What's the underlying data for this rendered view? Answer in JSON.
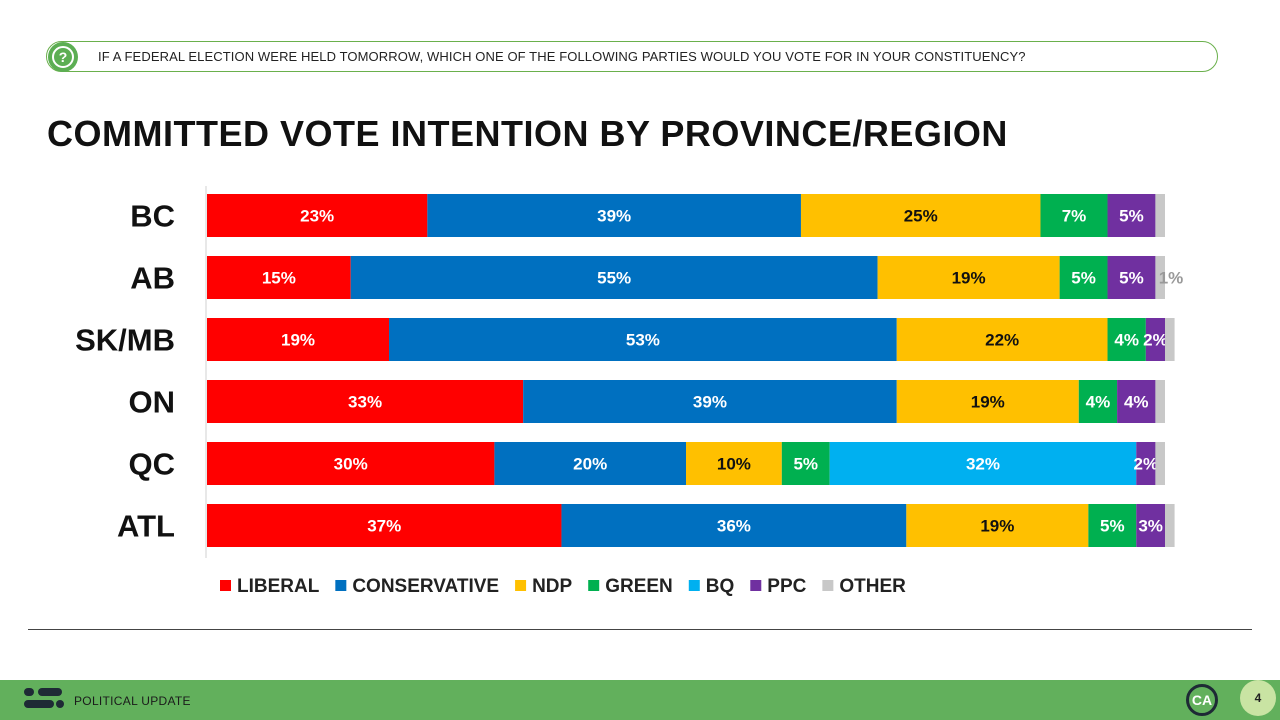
{
  "question": "IF A FEDERAL ELECTION WERE HELD TOMORROW, WHICH ONE OF THE FOLLOWING PARTIES WOULD YOU VOTE FOR IN YOUR CONSTITUENCY?",
  "title": "COMMITTED VOTE INTENTION BY PROVINCE/REGION",
  "footer": {
    "label": "POLITICAL UPDATE",
    "badge": "CA",
    "page": "4"
  },
  "chart_data": {
    "type": "bar",
    "orientation": "horizontal",
    "stacked": true,
    "title": "COMMITTED VOTE INTENTION BY PROVINCE/REGION",
    "xlim": [
      0,
      100
    ],
    "categories": [
      "BC",
      "AB",
      "SK/MB",
      "ON",
      "QC",
      "ATL"
    ],
    "legend_position": "bottom",
    "series": [
      {
        "name": "LIBERAL",
        "color": "#ff0000",
        "label_color": "#ffffff",
        "values": [
          23,
          15,
          19,
          33,
          30,
          37
        ]
      },
      {
        "name": "CONSERVATIVE",
        "color": "#0070c0",
        "label_color": "#ffffff",
        "values": [
          39,
          55,
          53,
          39,
          20,
          36
        ]
      },
      {
        "name": "NDP",
        "color": "#ffc000",
        "label_color": "#111111",
        "values": [
          25,
          19,
          22,
          19,
          10,
          19
        ]
      },
      {
        "name": "GREEN",
        "color": "#00b050",
        "label_color": "#ffffff",
        "values": [
          7,
          5,
          4,
          4,
          5,
          5
        ]
      },
      {
        "name": "BQ",
        "color": "#00b0f0",
        "label_color": "#ffffff",
        "values": [
          0,
          0,
          0,
          0,
          32,
          0
        ]
      },
      {
        "name": "PPC",
        "color": "#7030a0",
        "label_color": "#ffffff",
        "values": [
          5,
          5,
          2,
          4,
          2,
          3
        ]
      },
      {
        "name": "OTHER",
        "color": "#c8c8c8",
        "label_color": "#111111",
        "values": [
          1,
          1,
          1,
          1,
          1,
          1
        ]
      }
    ],
    "data_labels": [
      [
        "23%",
        "39%",
        "25%",
        "7%",
        "",
        "5%",
        ""
      ],
      [
        "15%",
        "55%",
        "19%",
        "5%",
        "",
        "5%",
        "1%"
      ],
      [
        "19%",
        "53%",
        "22%",
        "4%",
        "",
        "2%",
        ""
      ],
      [
        "33%",
        "39%",
        "19%",
        "4%",
        "",
        "4%",
        ""
      ],
      [
        "30%",
        "20%",
        "10%",
        "5%",
        "32%",
        "2%",
        ""
      ],
      [
        "37%",
        "36%",
        "19%",
        "5%",
        "",
        "3%",
        ""
      ]
    ]
  }
}
